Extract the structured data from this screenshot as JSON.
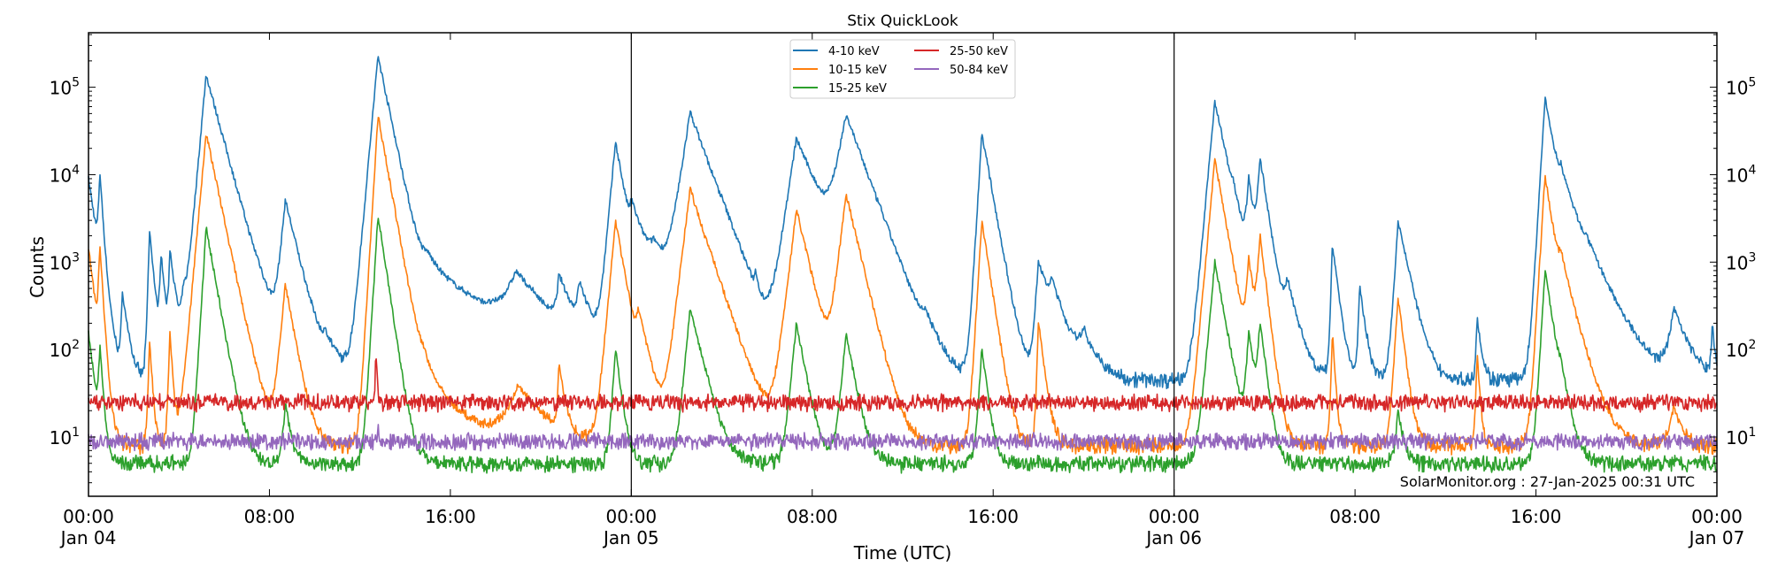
{
  "chart_data": {
    "type": "line",
    "title": "Stix QuickLook",
    "xlabel": "Time (UTC)",
    "ylabel": "Counts",
    "yscale": "log",
    "ylim": [
      2.1,
      420000
    ],
    "xlim_hours_from_start": [
      0,
      72
    ],
    "x_ticks": [
      {
        "h": 0,
        "label": "00:00",
        "date": "Jan 04"
      },
      {
        "h": 8,
        "label": "08:00",
        "date": ""
      },
      {
        "h": 16,
        "label": "16:00",
        "date": ""
      },
      {
        "h": 24,
        "label": "00:00",
        "date": "Jan 05"
      },
      {
        "h": 32,
        "label": "08:00",
        "date": ""
      },
      {
        "h": 40,
        "label": "16:00",
        "date": ""
      },
      {
        "h": 48,
        "label": "00:00",
        "date": "Jan 06"
      },
      {
        "h": 56,
        "label": "08:00",
        "date": ""
      },
      {
        "h": 64,
        "label": "16:00",
        "date": ""
      },
      {
        "h": 72,
        "label": "00:00",
        "date": "Jan 07"
      }
    ],
    "y_ticks": [
      {
        "exp": 1,
        "base": "10",
        "sup": "1"
      },
      {
        "exp": 2,
        "base": "10",
        "sup": "2"
      },
      {
        "exp": 3,
        "base": "10",
        "sup": "3"
      },
      {
        "exp": 4,
        "base": "10",
        "sup": "4"
      },
      {
        "exp": 5,
        "base": "10",
        "sup": "5"
      }
    ],
    "day_boundaries_hours": [
      24,
      48
    ],
    "grid": false,
    "legend": "top-center",
    "annotation": "SolarMonitor.org : 27-Jan-2025 00:31 UTC",
    "series": [
      {
        "name": "4-10 keV",
        "color": "#1f77b4",
        "baseline": 45,
        "events": [
          [
            0,
            9000,
            0.05,
            0.25
          ],
          [
            0.5,
            10000,
            0.05,
            0.1
          ],
          [
            1.5,
            400,
            0.05,
            0.2
          ],
          [
            2.7,
            2300,
            0.05,
            0.15
          ],
          [
            3.2,
            1200,
            0.05,
            0.15
          ],
          [
            3.6,
            1300,
            0.05,
            0.2
          ],
          [
            4.2,
            300,
            0.1,
            0.3
          ],
          [
            5.2,
            140000,
            0.15,
            0.45
          ],
          [
            6.2,
            300,
            0.3,
            1.2
          ],
          [
            7.5,
            100,
            0.2,
            0.5
          ],
          [
            8.7,
            5000,
            0.15,
            0.4
          ],
          [
            10.5,
            60,
            0.2,
            0.5
          ],
          [
            12.8,
            230000,
            0.15,
            0.35
          ],
          [
            13.6,
            250,
            0.3,
            0.6
          ],
          [
            15.0,
            850,
            0.6,
            2.2
          ],
          [
            18.9,
            600,
            0.5,
            1.2
          ],
          [
            20.8,
            500,
            0.1,
            0.5
          ],
          [
            21.7,
            400,
            0.1,
            0.4
          ],
          [
            23.3,
            24000,
            0.15,
            0.3
          ],
          [
            24.0,
            3000,
            0.1,
            0.8
          ],
          [
            25.0,
            800,
            0.3,
            0.8
          ],
          [
            26.6,
            52000,
            0.25,
            0.6
          ],
          [
            28.0,
            400,
            0.3,
            0.8
          ],
          [
            29.5,
            300,
            0.05,
            0.1
          ],
          [
            31.3,
            26000,
            0.25,
            0.7
          ],
          [
            33.5,
            48000,
            0.3,
            0.6
          ],
          [
            35.0,
            200,
            0.2,
            0.6
          ],
          [
            37.0,
            100,
            0.3,
            0.5
          ],
          [
            39.5,
            30000,
            0.1,
            0.3
          ],
          [
            42.0,
            1000,
            0.1,
            0.4
          ],
          [
            42.6,
            400,
            0.2,
            0.5
          ],
          [
            44.0,
            100,
            0.3,
            0.5
          ],
          [
            49.8,
            70000,
            0.15,
            0.35
          ],
          [
            50.6,
            2000,
            0.1,
            0.3
          ],
          [
            51.3,
            8000,
            0.1,
            0.2
          ],
          [
            51.8,
            15000,
            0.1,
            0.25
          ],
          [
            53.0,
            500,
            0.2,
            0.4
          ],
          [
            55.0,
            1600,
            0.05,
            0.2
          ],
          [
            56.2,
            500,
            0.05,
            0.2
          ],
          [
            57.9,
            3000,
            0.1,
            0.35
          ],
          [
            61.4,
            200,
            0.05,
            0.15
          ],
          [
            64.4,
            75000,
            0.1,
            0.3
          ],
          [
            65.1,
            6300,
            0.2,
            0.8
          ],
          [
            66.2,
            300,
            0.2,
            0.5
          ],
          [
            70.1,
            250,
            0.2,
            0.5
          ],
          [
            71.8,
            150,
            0.05,
            0.1
          ]
        ]
      },
      {
        "name": "10-15 keV",
        "color": "#ff7f0e",
        "baseline": 8,
        "events": [
          [
            0,
            1500,
            0.05,
            0.2
          ],
          [
            0.5,
            1500,
            0.05,
            0.1
          ],
          [
            2.7,
            120,
            0.05,
            0.1
          ],
          [
            3.6,
            150,
            0.05,
            0.1
          ],
          [
            5.2,
            30000,
            0.15,
            0.35
          ],
          [
            6.0,
            30,
            0.3,
            0.8
          ],
          [
            8.7,
            550,
            0.15,
            0.3
          ],
          [
            12.8,
            48000,
            0.1,
            0.3
          ],
          [
            14.8,
            45,
            0.5,
            1.2
          ],
          [
            19.0,
            30,
            0.5,
            1.0
          ],
          [
            20.8,
            60,
            0.05,
            0.2
          ],
          [
            23.3,
            3000,
            0.15,
            0.3
          ],
          [
            24.3,
            200,
            0.1,
            0.4
          ],
          [
            26.6,
            7000,
            0.2,
            0.5
          ],
          [
            27.5,
            200,
            0.3,
            0.8
          ],
          [
            31.3,
            4000,
            0.2,
            0.4
          ],
          [
            33.5,
            6000,
            0.2,
            0.4
          ],
          [
            39.5,
            3000,
            0.1,
            0.25
          ],
          [
            42.0,
            200,
            0.05,
            0.2
          ],
          [
            49.8,
            15000,
            0.15,
            0.3
          ],
          [
            51.3,
            1000,
            0.1,
            0.2
          ],
          [
            51.8,
            2000,
            0.1,
            0.2
          ],
          [
            55.0,
            150,
            0.05,
            0.1
          ],
          [
            57.9,
            400,
            0.1,
            0.2
          ],
          [
            61.4,
            80,
            0.05,
            0.1
          ],
          [
            64.4,
            10000,
            0.1,
            0.25
          ],
          [
            65.1,
            800,
            0.2,
            0.5
          ],
          [
            70.1,
            15,
            0.2,
            0.3
          ]
        ]
      },
      {
        "name": "15-25 keV",
        "color": "#2ca02c",
        "baseline": 5,
        "events": [
          [
            0,
            150,
            0.05,
            0.2
          ],
          [
            0.5,
            100,
            0.05,
            0.1
          ],
          [
            5.2,
            2500,
            0.1,
            0.3
          ],
          [
            8.7,
            20,
            0.1,
            0.2
          ],
          [
            12.8,
            3500,
            0.1,
            0.25
          ],
          [
            23.3,
            100,
            0.1,
            0.2
          ],
          [
            26.6,
            300,
            0.15,
            0.4
          ],
          [
            31.3,
            200,
            0.15,
            0.3
          ],
          [
            33.5,
            150,
            0.15,
            0.3
          ],
          [
            39.5,
            100,
            0.1,
            0.2
          ],
          [
            49.8,
            1000,
            0.15,
            0.3
          ],
          [
            51.3,
            150,
            0.1,
            0.2
          ],
          [
            51.8,
            200,
            0.1,
            0.2
          ],
          [
            57.9,
            15,
            0.1,
            0.2
          ],
          [
            64.4,
            800,
            0.1,
            0.25
          ],
          [
            65.1,
            30,
            0.2,
            0.3
          ]
        ]
      },
      {
        "name": "25-50 keV",
        "color": "#d62728",
        "baseline": 25,
        "events": [
          [
            12.7,
            80,
            0.02,
            0.05
          ],
          [
            5.2,
            5,
            0.1,
            0.2
          ]
        ]
      },
      {
        "name": "50-84 keV",
        "color": "#9467bd",
        "baseline": 9,
        "events": [
          [
            12.8,
            3,
            0.05,
            0.1
          ]
        ]
      }
    ]
  }
}
